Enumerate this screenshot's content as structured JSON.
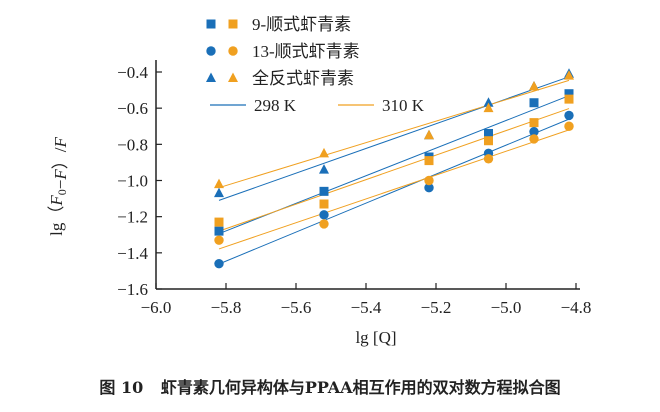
{
  "chart_data": {
    "type": "scatter",
    "xlabel": "lg [Q]",
    "ylabel_parts": [
      "lg（",
      "F",
      "0",
      "−",
      "F",
      "）/",
      "F"
    ],
    "xlim": [
      -6.0,
      -4.8
    ],
    "ylim": [
      -1.6,
      -0.4
    ],
    "xticks": [
      -6.0,
      -5.8,
      -5.6,
      -5.4,
      -5.2,
      -5.0,
      -4.8
    ],
    "yticks": [
      -1.6,
      -1.4,
      -1.2,
      -1.0,
      -0.8,
      -0.6,
      -0.4
    ],
    "xtick_labels": [
      "−6.0",
      "−5.8",
      "−5.6",
      "−5.4",
      "−5.2",
      "−5.0",
      "−4.8"
    ],
    "ytick_labels": [
      "−1.6",
      "−1.4",
      "−1.2",
      "−1.0",
      "−0.8",
      "−0.6",
      "−0.4"
    ],
    "grid": false,
    "legend_placement": "top-left",
    "colors": {
      "298 K": "#1a6fb8",
      "310 K": "#f0a020"
    },
    "x": [
      -5.82,
      -5.52,
      -5.22,
      -5.05,
      -4.92,
      -4.82
    ],
    "series": [
      {
        "name": "9-顺式虾青素",
        "temp": "298 K",
        "marker": "square",
        "values": [
          -1.28,
          -1.06,
          -0.87,
          -0.74,
          -0.57,
          -0.52
        ]
      },
      {
        "name": "9-顺式虾青素",
        "temp": "310 K",
        "marker": "square",
        "values": [
          -1.23,
          -1.13,
          -0.89,
          -0.78,
          -0.68,
          -0.55
        ]
      },
      {
        "name": "13-顺式虾青素",
        "temp": "298 K",
        "marker": "circle",
        "values": [
          -1.46,
          -1.19,
          -1.04,
          -0.85,
          -0.73,
          -0.64
        ]
      },
      {
        "name": "13-顺式虾青素",
        "temp": "310 K",
        "marker": "circle",
        "values": [
          -1.33,
          -1.24,
          -1.0,
          -0.88,
          -0.77,
          -0.7
        ]
      },
      {
        "name": "全反式虾青素",
        "temp": "298 K",
        "marker": "triangle",
        "values": [
          -1.07,
          -0.94,
          -0.75,
          -0.57,
          -0.48,
          -0.41
        ]
      },
      {
        "name": "全反式虾青素",
        "temp": "310 K",
        "marker": "triangle",
        "values": [
          -1.02,
          -0.85,
          -0.75,
          -0.6,
          -0.48,
          -0.42
        ]
      }
    ],
    "fit_lines": "linear fit per series",
    "legend": {
      "markers": [
        "9-顺式虾青素",
        "13-顺式虾青素",
        "全反式虾青素"
      ],
      "lines": [
        "298 K",
        "310 K"
      ]
    }
  },
  "caption": {
    "label": "图 10",
    "text": "虾青素几何异构体与PPAA相互作用的双对数方程拟合图"
  }
}
